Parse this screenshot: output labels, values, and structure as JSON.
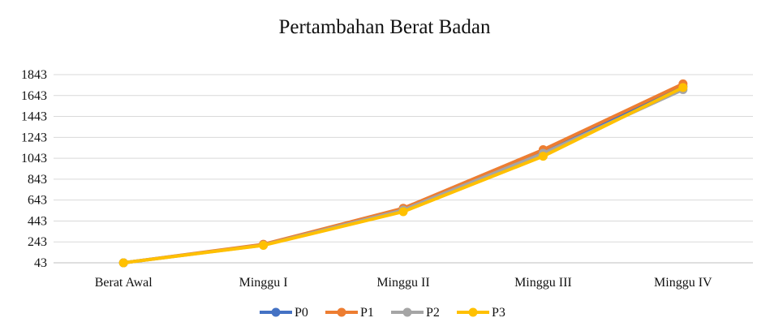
{
  "chart_data": {
    "type": "line",
    "title": "Pertambahan  Berat Badan",
    "xlabel": "",
    "ylabel": "",
    "categories": [
      "Berat Awal",
      "Minggu I",
      "Minggu II",
      "Minggu III",
      "Minggu IV"
    ],
    "y_ticks": [
      43,
      243,
      443,
      643,
      843,
      1043,
      1243,
      1443,
      1643,
      1843
    ],
    "ylim": [
      43,
      1843
    ],
    "grid": true,
    "legend_position": "bottom",
    "series": [
      {
        "name": "P0",
        "color": "#4472C4",
        "values": [
          43,
          215,
          560,
          1110,
          1730
        ]
      },
      {
        "name": "P1",
        "color": "#ED7D31",
        "values": [
          43,
          220,
          565,
          1125,
          1755
        ]
      },
      {
        "name": "P2",
        "color": "#A5A5A5",
        "values": [
          43,
          212,
          548,
          1090,
          1700
        ]
      },
      {
        "name": "P3",
        "color": "#FFC000",
        "values": [
          43,
          210,
          532,
          1062,
          1720
        ]
      }
    ]
  }
}
